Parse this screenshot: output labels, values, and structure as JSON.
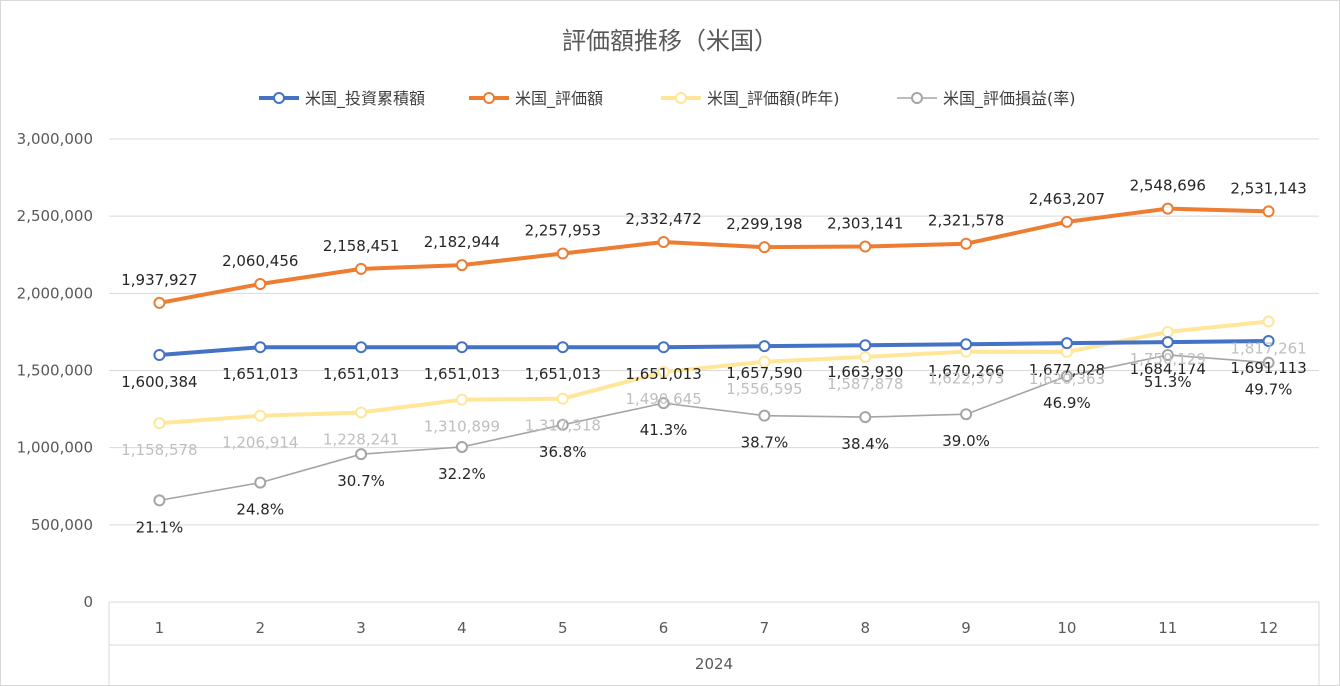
{
  "chart_data": {
    "type": "line",
    "title": "評価額推移（米国）",
    "categories": [
      "1",
      "2",
      "3",
      "4",
      "5",
      "6",
      "7",
      "8",
      "9",
      "10",
      "11",
      "12"
    ],
    "category_group": "2024",
    "ylim": [
      0,
      3000000
    ],
    "yticks": [
      0,
      500000,
      1000000,
      1500000,
      2000000,
      2500000,
      3000000
    ],
    "ytick_labels": [
      "0",
      "500,000",
      "1,000,000",
      "1,500,000",
      "2,000,000",
      "2,500,000",
      "3,000,000"
    ],
    "grid": "horizontal",
    "legend_position": "top",
    "series": [
      {
        "name": "米国_投資累積額",
        "color": "#4472C4",
        "values": [
          1600384,
          1651013,
          1651013,
          1651013,
          1651013,
          1651013,
          1657590,
          1663930,
          1670266,
          1677028,
          1684174,
          1691113
        ],
        "labels": [
          "1,600,384",
          "1,651,013",
          "1,651,013",
          "1,651,013",
          "1,651,013",
          "1,651,013",
          "1,657,590",
          "1,663,930",
          "1,670,266",
          "1,677,028",
          "1,684,174",
          "1,691,113"
        ]
      },
      {
        "name": "米国_評価額",
        "color": "#ED7D31",
        "values": [
          1937927,
          2060456,
          2158451,
          2182944,
          2257953,
          2332472,
          2299198,
          2303141,
          2321578,
          2463207,
          2548696,
          2531143
        ],
        "labels": [
          "1,937,927",
          "2,060,456",
          "2,158,451",
          "2,182,944",
          "2,257,953",
          "2,332,472",
          "2,299,198",
          "2,303,141",
          "2,321,578",
          "2,463,207",
          "2,548,696",
          "2,531,143"
        ]
      },
      {
        "name": "米国_評価額(昨年)",
        "color": "#FFE699",
        "values": [
          1158578,
          1206914,
          1228241,
          1310899,
          1317318,
          1490645,
          1556595,
          1587878,
          1622373,
          1620363,
          1750129,
          1817261
        ],
        "labels": [
          "1,158,578",
          "1,206,914",
          "1,228,241",
          "1,310,899",
          "1,317,318",
          "1,490,645",
          "1,556,595",
          "1,587,878",
          "1,622,373",
          "1,620,363",
          "1,750,129",
          "1,817,261"
        ]
      },
      {
        "name": "米国_評価損益(率)",
        "color": "#A5A5A5",
        "values": [
          21.1,
          24.8,
          30.7,
          32.2,
          36.8,
          41.3,
          38.7,
          38.4,
          39.0,
          46.9,
          51.3,
          49.7
        ],
        "labels": [
          "21.1%",
          "24.8%",
          "30.7%",
          "32.2%",
          "36.8%",
          "41.3%",
          "38.7%",
          "38.4%",
          "39.0%",
          "46.9%",
          "51.3%",
          "49.7%"
        ],
        "secondary_axis": true,
        "secondary_axis_visible": false
      }
    ]
  }
}
